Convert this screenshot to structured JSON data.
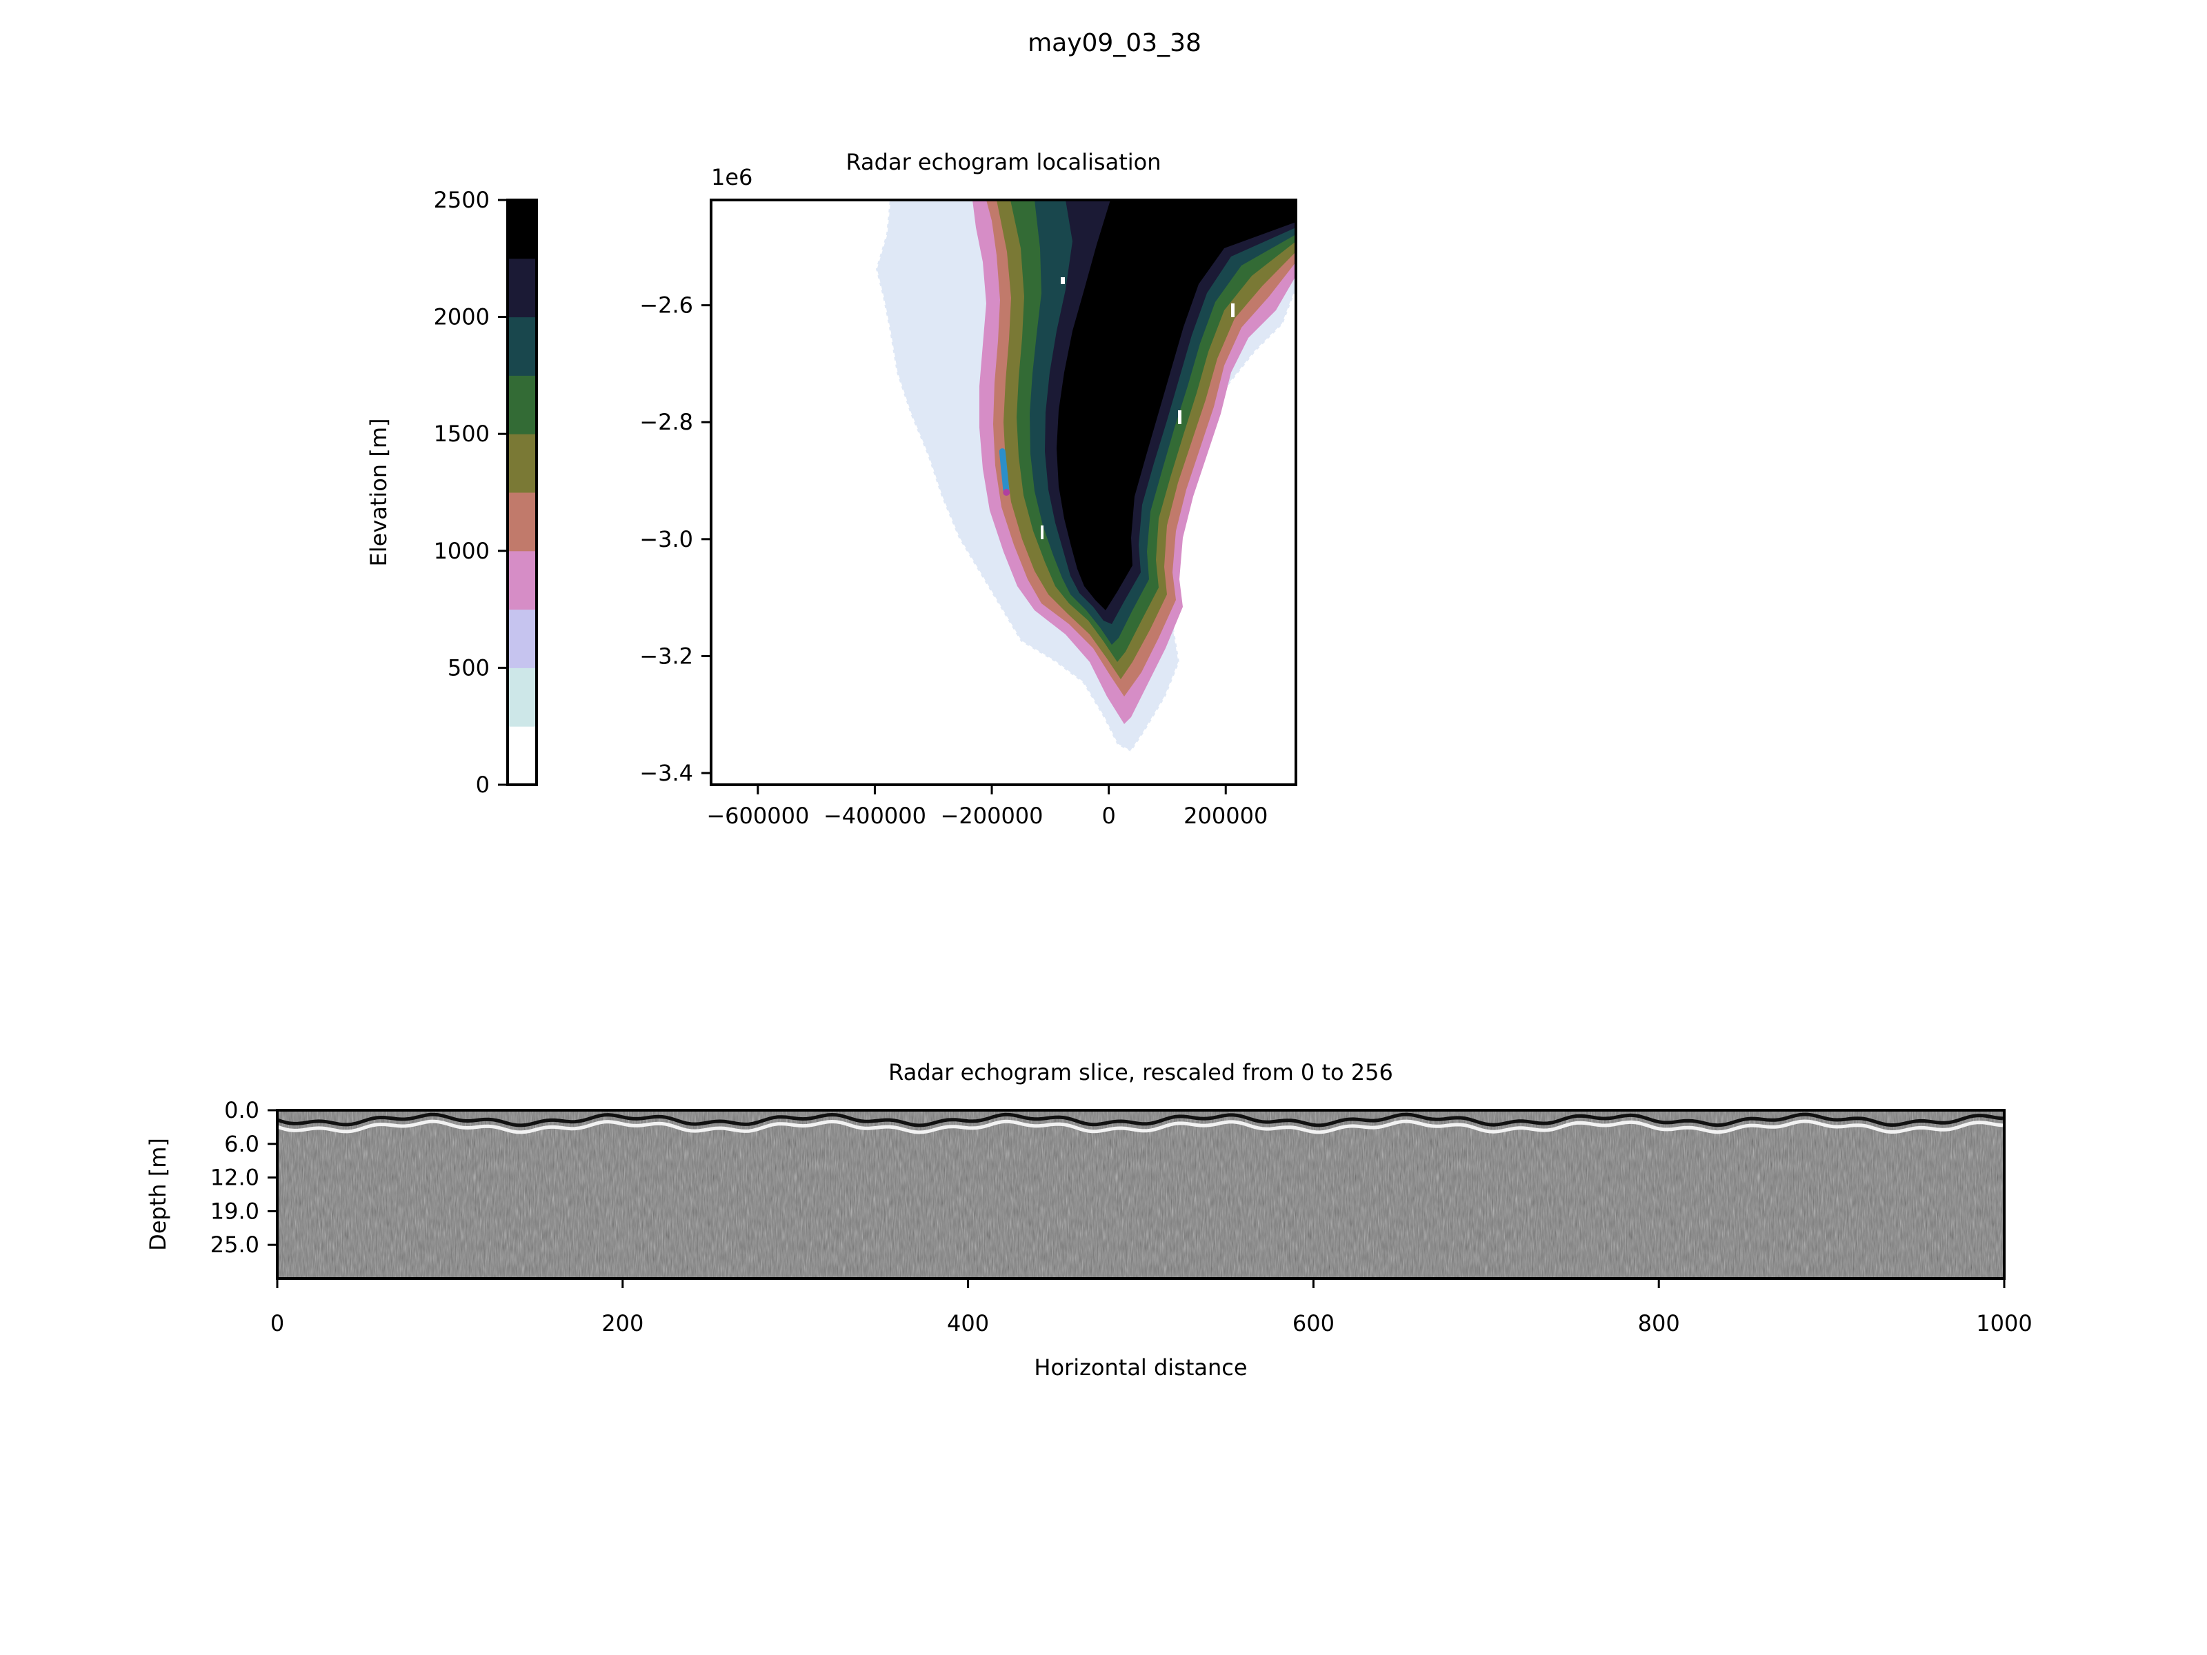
{
  "figure": {
    "suptitle": "may09_03_38"
  },
  "colorbar": {
    "label": "Elevation [m]",
    "range": [
      0,
      2500
    ],
    "ticks": [
      "0",
      "500",
      "1000",
      "1500",
      "2000",
      "2500"
    ],
    "bands": [
      "#ffffff",
      "#cde7e8",
      "#c6c4ef",
      "#d68dc6",
      "#c17a6b",
      "#7a7935",
      "#336b35",
      "#19474d",
      "#1b1a35",
      "#000000"
    ]
  },
  "chart_data": [
    {
      "type": "heatmap",
      "title": "Radar echogram localisation",
      "x_ticks": [
        "−600000",
        "−400000",
        "−200000",
        "0",
        "200000"
      ],
      "y_ticks": [
        "−2.6",
        "−2.8",
        "−3.0",
        "−3.2",
        "−3.4"
      ],
      "y_offset_label": "1e6",
      "xlim": [
        -680000,
        320000
      ],
      "ylim": [
        -3420000,
        -2420000
      ],
      "grid": false,
      "track": {
        "x": [
          -182000,
          -175000
        ],
        "y": [
          -2850000,
          -2920000
        ],
        "color": "#2c8fc9",
        "end_color": "#b040a0"
      }
    },
    {
      "type": "heatmap",
      "title": "Radar echogram slice, rescaled from 0 to 256",
      "xlabel": "Horizontal distance",
      "ylabel": "Depth [m]",
      "x_ticks": [
        "0",
        "200",
        "400",
        "600",
        "800",
        "1000"
      ],
      "y_ticks": [
        "0.0",
        "6.0",
        "12.0",
        "19.0",
        "25.0"
      ],
      "xlim": [
        0,
        1000
      ],
      "grid": false,
      "colormap": "gray"
    }
  ]
}
